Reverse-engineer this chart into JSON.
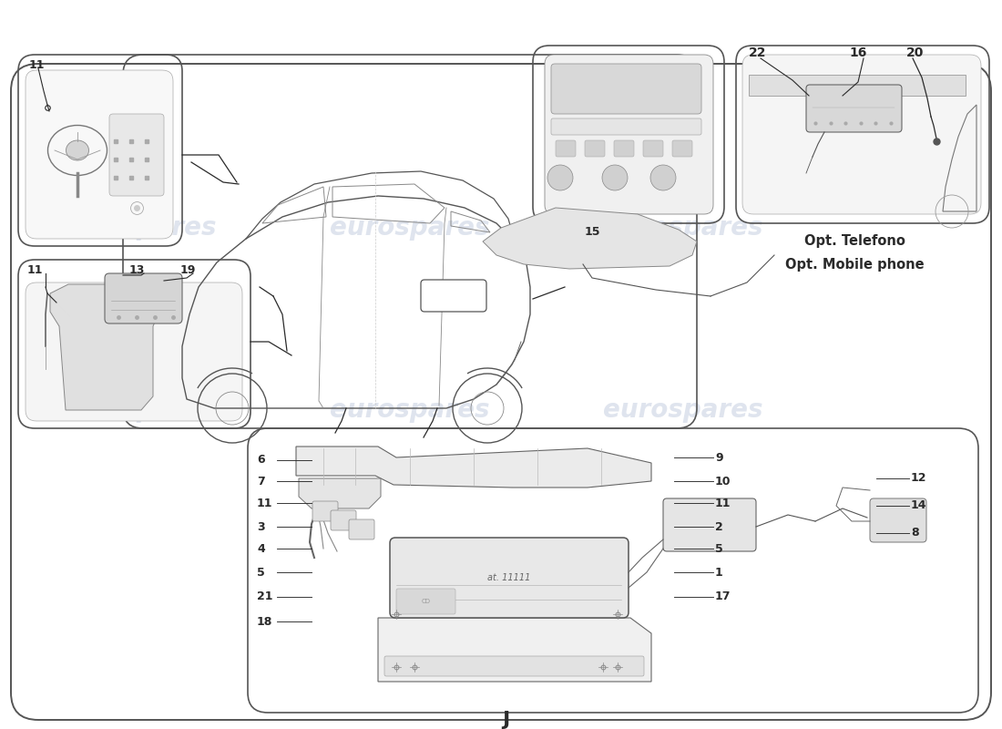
{
  "background_color": "#ffffff",
  "watermark_text": "eurospares",
  "watermark_color": "#c5cfe0",
  "watermark_alpha": 0.55,
  "line_color": "#2a2a2a",
  "light_line_color": "#888888",
  "box_edge_color": "#444444",
  "fill_light": "#f0f0f0",
  "fill_medium": "#e0e0e0",
  "label_J": "J",
  "opt_line1": "Opt. Telefono",
  "opt_line2": "Opt. Mobile phone",
  "label_15": "15",
  "labels_tr": [
    "22",
    "16",
    "20"
  ],
  "labels_left_bottom": [
    "6",
    "7",
    "11",
    "3",
    "4",
    "5",
    "21",
    "18"
  ],
  "labels_right_bottom": [
    "9",
    "10",
    "11",
    "2",
    "5",
    "1",
    "17"
  ],
  "labels_far_right": [
    "12",
    "14",
    "8"
  ],
  "label_tl": "11",
  "labels_ml": [
    "11",
    "13",
    "19"
  ]
}
